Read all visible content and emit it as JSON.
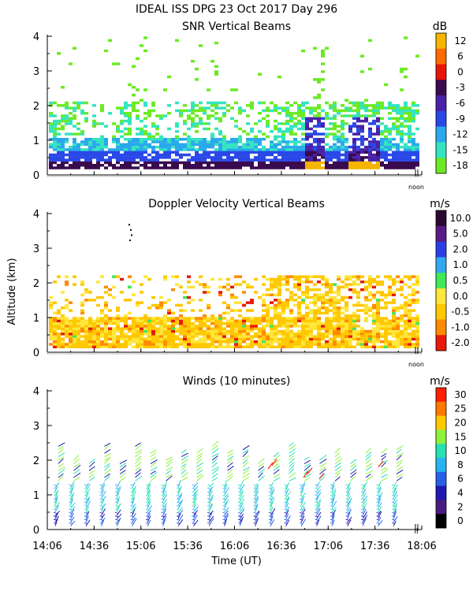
{
  "page": {
    "title": "IDEAL ISS DPG  23 Oct 2017 Day 296",
    "y_axis_label": "Altitude (km)",
    "x_axis_label": "Time (UT)",
    "noon_label": "noon",
    "noon_label_3": "ll"
  },
  "chart_data": [
    {
      "type": "heatmap",
      "title": "SNR Vertical Beams",
      "unit": "dB",
      "x": "time 14:06-18:06 UT",
      "ylabel": "Altitude (km)",
      "ylim": [
        0,
        4
      ],
      "yticks": [
        "0",
        "1",
        "2",
        "3",
        "4"
      ],
      "colorbar_labels": [
        "12",
        "6",
        "0",
        "-3",
        "-6",
        "-9",
        "-12",
        "-15",
        "-18"
      ],
      "colorbar_colors": [
        "#f5b400",
        "#ff6a00",
        "#e8150a",
        "#3a0a4e",
        "#4a22a8",
        "#2a48e8",
        "#2aa8ec",
        "#34e4c0",
        "#6cea24"
      ]
    },
    {
      "type": "heatmap",
      "title": "Doppler Velocity Vertical Beams",
      "unit": "m/s",
      "ylabel": "Altitude (km)",
      "ylim": [
        0,
        4
      ],
      "yticks": [
        "0",
        "1",
        "2",
        "3",
        "4"
      ],
      "colorbar_labels": [
        "10.0",
        "5.0",
        "2.0",
        "1.0",
        "0.5",
        "0.0",
        "-0.5",
        "-1.0",
        "-2.0"
      ],
      "colorbar_colors": [
        "#2a0830",
        "#5a1a86",
        "#2a3ee8",
        "#32a8ee",
        "#40e85a",
        "#ffe63a",
        "#ffc800",
        "#ff8a00",
        "#e8180a"
      ]
    },
    {
      "type": "scatter",
      "title": "Winds (10 minutes)",
      "unit": "m/s",
      "ylabel": "Altitude (km)",
      "ylim": [
        0,
        4
      ],
      "yticks": [
        "0",
        "1",
        "2",
        "3",
        "4"
      ],
      "xticks": [
        "14:06",
        "14:36",
        "15:06",
        "15:36",
        "16:06",
        "16:36",
        "17:06",
        "17:36",
        "18:06"
      ],
      "xlabel": "Time (UT)",
      "colorbar_labels": [
        "30",
        "25",
        "20",
        "15",
        "10",
        "8",
        "6",
        "4",
        "2",
        "0"
      ],
      "colorbar_colors": [
        "#ff1e00",
        "#ff7800",
        "#ffc800",
        "#8cf23a",
        "#27e0b4",
        "#27b4f0",
        "#2860e8",
        "#2018b0",
        "#4a1a80",
        "#000000"
      ]
    }
  ]
}
